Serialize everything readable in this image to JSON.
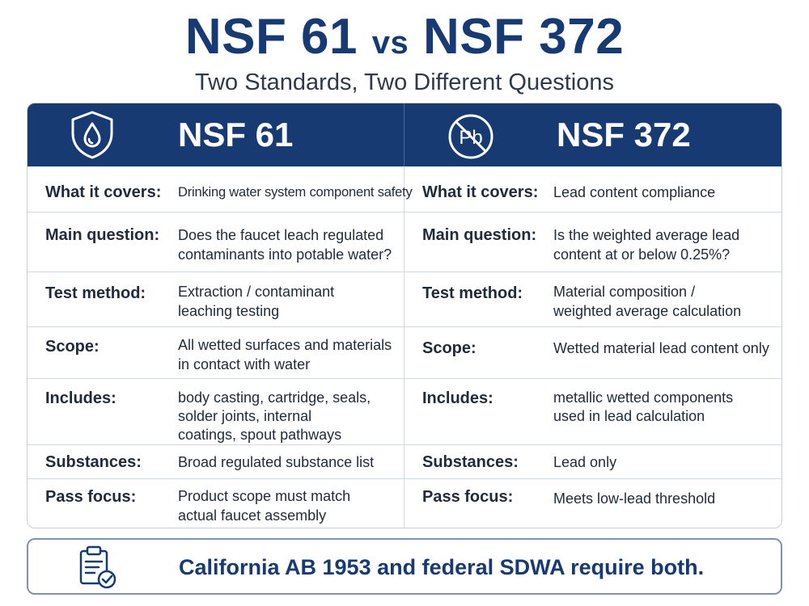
{
  "header": {
    "title_left": "NSF 61",
    "title_vs": "vs",
    "title_right": "NSF 372",
    "subtitle": "Two Standards, Two Different Questions"
  },
  "columns": [
    {
      "name": "NSF 61",
      "icon": "water-drop-shield-icon"
    },
    {
      "name": "NSF 372",
      "icon": "no-lead-pb-icon"
    }
  ],
  "rows": [
    {
      "label": "What it covers:",
      "nsf61": "Drinking water system component safety",
      "nsf372": "Lead content compliance"
    },
    {
      "label": "Main question:",
      "nsf61": "Does the faucet leach regulated contaminants into potable water?",
      "nsf372": "Is the weighted average lead content at or below 0.25%?"
    },
    {
      "label": "Test method:",
      "nsf61": "Extraction / contaminant leaching testing",
      "nsf372": "Material composition / weighted average calculation"
    },
    {
      "label": "Scope:",
      "nsf61": "All wetted surfaces and materials in contact with water",
      "nsf372": "Wetted material lead content only"
    },
    {
      "label": "Includes:",
      "nsf61": "body casting, cartridge, seals, solder joints, internal coatings, spout pathways",
      "nsf372": "metallic wetted components used in lead calculation"
    },
    {
      "label": "Substances:",
      "nsf61": "Broad regulated substance list",
      "nsf372": "Lead only"
    },
    {
      "label": "Pass focus:",
      "nsf61": "Product scope must match actual faucet assembly",
      "nsf372": "Meets low-lead threshold"
    }
  ],
  "footer": {
    "icon": "clipboard-check-icon",
    "text": "California AB 1953 and federal SDWA require both."
  },
  "colors": {
    "navy": "#173a73",
    "border": "#c7ced8",
    "footer_border": "#7d93b5"
  }
}
